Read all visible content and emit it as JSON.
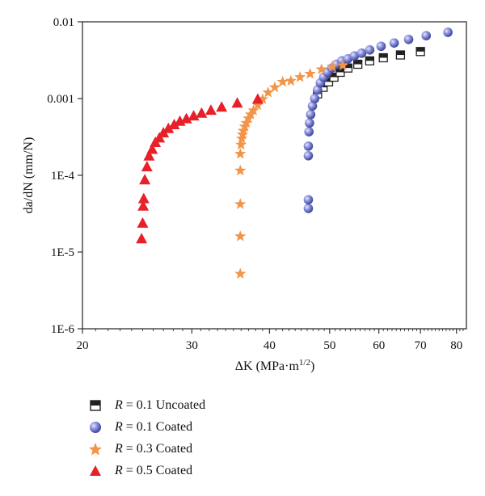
{
  "chart_data": {
    "type": "scatter",
    "xlabel_main": "ΔK (MPa·m",
    "xlabel_sup": "1/2",
    "xlabel_end": ")",
    "ylabel": "da/dN (mm/N)",
    "x_scale": "log",
    "y_scale": "log",
    "xlim": [
      20,
      83
    ],
    "ylim": [
      1e-06,
      0.01
    ],
    "x_ticks": [
      20,
      30,
      40,
      50,
      60,
      70,
      80
    ],
    "x_tick_labels": [
      "20",
      "30",
      "40",
      "50",
      "60",
      "70",
      "80"
    ],
    "y_ticks": [
      1e-06,
      1e-05,
      0.0001,
      0.001,
      0.01
    ],
    "y_tick_labels": [
      "1E-6",
      "1E-5",
      "1E-4",
      "0.001",
      "0.01"
    ],
    "grid": false,
    "legend_position": "below",
    "series": [
      {
        "label_var": "R",
        "label_rest": " = 0.1 Uncoated",
        "marker": "half-square",
        "color": "#222222",
        "x": [
          47.8,
          48.8,
          49.8,
          50.8,
          52.0,
          53.5,
          55.5,
          58.0,
          61.0,
          65.0,
          70.0
        ],
        "y": [
          0.00115,
          0.0014,
          0.00165,
          0.0019,
          0.0022,
          0.0025,
          0.0028,
          0.0031,
          0.0034,
          0.0037,
          0.0041
        ]
      },
      {
        "label_var": "R",
        "label_rest": " = 0.1 Coated",
        "marker": "sphere",
        "color": "#6a72c4",
        "x": [
          46.2,
          46.2,
          46.2,
          46.2,
          46.3,
          46.4,
          46.6,
          46.9,
          47.3,
          47.8,
          48.3,
          48.9,
          49.6,
          50.4,
          51.3,
          52.3,
          53.5,
          54.8,
          56.3,
          58.0,
          60.5,
          63.5,
          67.0,
          71.5,
          77.5
        ],
        "y": [
          3.7e-05,
          4.8e-05,
          0.00018,
          0.00024,
          0.00037,
          0.00048,
          0.00062,
          0.0008,
          0.001,
          0.0013,
          0.0016,
          0.0019,
          0.0022,
          0.0025,
          0.0028,
          0.0031,
          0.0033,
          0.0036,
          0.0039,
          0.0043,
          0.0048,
          0.0053,
          0.0059,
          0.0066,
          0.0073
        ]
      },
      {
        "label_var": "R",
        "label_rest": " = 0.3 Coated",
        "marker": "star",
        "color": "#f2954a",
        "x": [
          35.9,
          35.9,
          35.9,
          35.9,
          35.9,
          36.0,
          36.1,
          36.2,
          36.3,
          36.5,
          36.7,
          37.0,
          37.3,
          37.7,
          38.3,
          39.0,
          39.8,
          40.8,
          42.0,
          43.3,
          44.8,
          46.5,
          48.5,
          50.5,
          52.5
        ],
        "y": [
          5.2e-06,
          1.6e-05,
          4.2e-05,
          0.000115,
          0.00019,
          0.00025,
          0.0003,
          0.00034,
          0.00038,
          0.00043,
          0.00048,
          0.00055,
          0.00062,
          0.0007,
          0.00082,
          0.00098,
          0.0012,
          0.0014,
          0.00165,
          0.0017,
          0.0019,
          0.0021,
          0.0024,
          0.0026,
          0.0027
        ]
      },
      {
        "label_var": "R",
        "label_rest": " = 0.5 Coated",
        "marker": "triangle",
        "color": "#e8202a",
        "x": [
          24.9,
          25.0,
          25.05,
          25.1,
          25.2,
          25.4,
          25.6,
          25.9,
          26.2,
          26.6,
          27.0,
          27.5,
          28.1,
          28.7,
          29.4,
          30.2,
          31.1,
          32.2,
          33.5,
          35.5,
          38.3
        ],
        "y": [
          1.5e-05,
          2.4e-05,
          4e-05,
          5e-05,
          8.8e-05,
          0.00013,
          0.00018,
          0.00022,
          0.00027,
          0.00031,
          0.00036,
          0.00041,
          0.00046,
          0.00051,
          0.00055,
          0.0006,
          0.00065,
          0.00071,
          0.00078,
          0.00088,
          0.00099
        ]
      }
    ]
  }
}
